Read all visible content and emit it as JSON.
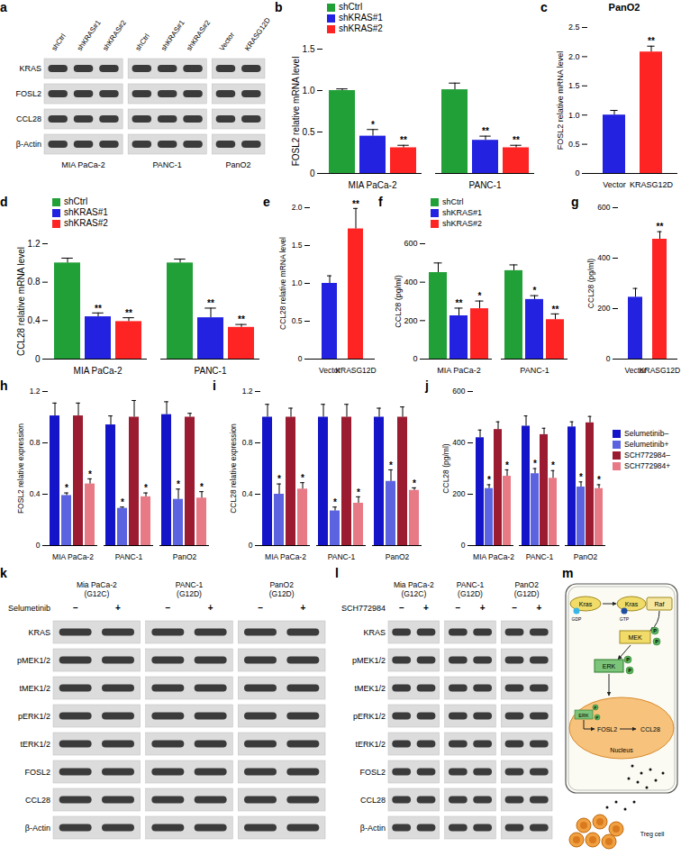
{
  "chart_data": [
    {
      "panel": "b",
      "type": "bar",
      "y_label": "FOSL2 relative mRNA level",
      "categories": [
        "MIA PaCa-2",
        "PANC-1"
      ],
      "series": [
        {
          "name": "shCtrl",
          "color": "#21a038",
          "values": [
            1.0,
            1.01
          ],
          "errors": [
            0.02,
            0.08
          ],
          "significance": [
            null,
            null
          ]
        },
        {
          "name": "shKRAS#1",
          "color": "#2222e0",
          "values": [
            0.45,
            0.4
          ],
          "errors": [
            0.08,
            0.05
          ],
          "significance": [
            "*",
            "**"
          ]
        },
        {
          "name": "shKRAS#2",
          "color": "#ff2424",
          "values": [
            0.31,
            0.31
          ],
          "errors": [
            0.03,
            0.03
          ],
          "significance": [
            "**",
            "**"
          ]
        }
      ],
      "ylim": [
        0,
        1.5
      ],
      "yticks": [
        0,
        0.5,
        {
          "value": 1,
          "label": "1.0"
        },
        1.5
      ],
      "legend": "top"
    },
    {
      "panel": "c",
      "type": "bar",
      "title": "PanO2",
      "y_label": "FOSL2 relative mRNA level",
      "categories": [
        "Vector",
        "KRASG12D"
      ],
      "values": [
        1.0,
        2.08
      ],
      "errors": [
        0.08,
        0.1
      ],
      "significance": [
        null,
        "**"
      ],
      "colors": [
        "#2222e0",
        "#ff2424"
      ],
      "ylim": [
        0,
        2.5
      ],
      "yticks": [
        0,
        0.5,
        {
          "value": 1,
          "label": "1.0"
        },
        1.5,
        {
          "value": 2,
          "label": "2.0"
        },
        2.5
      ]
    },
    {
      "panel": "d",
      "type": "bar",
      "y_label": "CCL28 relative mRNA level",
      "categories": [
        "MIA PaCa-2",
        "PANC-1"
      ],
      "series": [
        {
          "name": "shCtrl",
          "color": "#21a038",
          "values": [
            1.0,
            1.0
          ],
          "errors": [
            0.05,
            0.04
          ],
          "significance": [
            null,
            null
          ]
        },
        {
          "name": "shKRAS#1",
          "color": "#2222e0",
          "values": [
            0.44,
            0.43
          ],
          "errors": [
            0.04,
            0.1
          ],
          "significance": [
            "**",
            "**"
          ]
        },
        {
          "name": "shKRAS#2",
          "color": "#ff2424",
          "values": [
            0.39,
            0.33
          ],
          "errors": [
            0.04,
            0.03
          ],
          "significance": [
            "**",
            "**"
          ]
        }
      ],
      "ylim": [
        0,
        1.2
      ],
      "yticks": [
        0,
        0.4,
        0.8,
        1.2
      ],
      "legend": "top"
    },
    {
      "panel": "e",
      "type": "bar",
      "y_label": "CCL28 relative mRNA level",
      "categories": [
        "Vector",
        "KRASG12D"
      ],
      "values": [
        1.0,
        1.72
      ],
      "errors": [
        0.1,
        0.27
      ],
      "significance": [
        null,
        "**"
      ],
      "colors": [
        "#2222e0",
        "#ff2424"
      ],
      "ylim": [
        0,
        2
      ],
      "yticks": [
        0,
        0.5,
        {
          "value": 1,
          "label": "1.0"
        },
        1.5,
        {
          "value": 2,
          "label": "2.0"
        }
      ]
    },
    {
      "panel": "f",
      "type": "bar",
      "y_label": "CCL28 (pg/ml)",
      "categories": [
        "MIA PaCa-2",
        "PANC-1"
      ],
      "series": [
        {
          "name": "shCtrl",
          "color": "#21a038",
          "values": [
            450,
            460
          ],
          "errors": [
            50,
            30
          ],
          "significance": [
            null,
            null
          ]
        },
        {
          "name": "shKRAS#1",
          "color": "#2222e0",
          "values": [
            225,
            310
          ],
          "errors": [
            40,
            20
          ],
          "significance": [
            "**",
            "*"
          ]
        },
        {
          "name": "shKRAS#2",
          "color": "#ff2424",
          "values": [
            262,
            205
          ],
          "errors": [
            40,
            30
          ],
          "significance": [
            "*",
            "**"
          ]
        }
      ],
      "ylim": [
        0,
        600
      ],
      "yticks": [
        0,
        200,
        400,
        600
      ],
      "legend": "top"
    },
    {
      "panel": "g",
      "type": "bar",
      "y_label": "CCL28 (pg/ml)",
      "categories": [
        "Vector",
        "KRASG12D"
      ],
      "values": [
        245,
        475
      ],
      "errors": [
        35,
        30
      ],
      "significance": [
        null,
        "**"
      ],
      "colors": [
        "#2222e0",
        "#ff2424"
      ],
      "ylim": [
        0,
        600
      ],
      "yticks": [
        0,
        200,
        400,
        600
      ]
    },
    {
      "panel": "h",
      "type": "bar",
      "y_label": "FOSL2 relative expression",
      "categories": [
        "MIA PaCa-2",
        "PANC-1",
        "PanO2"
      ],
      "series": [
        {
          "name": "Selumetinib–",
          "color": "#1414c8",
          "values": [
            1.01,
            0.94,
            1.02
          ],
          "errors": [
            0.1,
            0.07,
            0.1
          ],
          "significance": [
            null,
            null,
            null
          ]
        },
        {
          "name": "Selumetinib+",
          "color": "#5b63e0",
          "values": [
            0.39,
            0.29,
            0.36
          ],
          "errors": [
            0.02,
            0.01,
            0.08
          ],
          "significance": [
            "*",
            "*",
            "*"
          ]
        },
        {
          "name": "SCH772984–",
          "color": "#9b1b30",
          "values": [
            1.01,
            1.0,
            1.0
          ],
          "errors": [
            0.1,
            0.13,
            0.03
          ],
          "significance": [
            null,
            null,
            null
          ]
        },
        {
          "name": "SCH772984+",
          "color": "#e87a86",
          "values": [
            0.48,
            0.38,
            0.37
          ],
          "errors": [
            0.04,
            0.03,
            0.05
          ],
          "significance": [
            "*",
            "*",
            "*"
          ]
        }
      ],
      "ylim": [
        0,
        1.2
      ],
      "yticks": [
        0,
        0.4,
        0.8,
        1.2
      ],
      "legend": "none"
    },
    {
      "panel": "i",
      "type": "bar",
      "y_label": "CCL28 relative expression",
      "categories": [
        "MIA PaCa-2",
        "PANC-1",
        "PanO2"
      ],
      "series": [
        {
          "name": "Selumetinib–",
          "color": "#1414c8",
          "values": [
            1.0,
            1.0,
            1.0
          ],
          "errors": [
            0.1,
            0.1,
            0.07
          ],
          "significance": [
            null,
            null,
            null
          ]
        },
        {
          "name": "Selumetinib+",
          "color": "#5b63e0",
          "values": [
            0.4,
            0.27,
            0.5
          ],
          "errors": [
            0.08,
            0.03,
            0.09
          ],
          "significance": [
            "*",
            "*",
            "*"
          ]
        },
        {
          "name": "SCH772984–",
          "color": "#9b1b30",
          "values": [
            1.0,
            1.0,
            1.0
          ],
          "errors": [
            0.07,
            0.1,
            0.08
          ],
          "significance": [
            null,
            null,
            null
          ]
        },
        {
          "name": "SCH772984+",
          "color": "#e87a86",
          "values": [
            0.44,
            0.33,
            0.43
          ],
          "errors": [
            0.05,
            0.05,
            0.02
          ],
          "significance": [
            "*",
            "*",
            "*"
          ]
        }
      ],
      "ylim": [
        0,
        1.2
      ],
      "yticks": [
        0,
        0.4,
        0.8,
        1.2
      ],
      "legend": "none"
    },
    {
      "panel": "j",
      "type": "bar",
      "y_label": "CCL28 (pg/ml)",
      "categories": [
        "MIA PaCa-2",
        "PANC-1",
        "PanO2"
      ],
      "series": [
        {
          "name": "Selumetinib–",
          "color": "#1414c8",
          "values": [
            420,
            465,
            462
          ],
          "errors": [
            30,
            40,
            20
          ],
          "significance": [
            null,
            null,
            null
          ]
        },
        {
          "name": "Selumetinib+",
          "color": "#5b63e0",
          "values": [
            222,
            280,
            228
          ],
          "errors": [
            15,
            20,
            20
          ],
          "significance": [
            "*",
            "*",
            "*"
          ]
        },
        {
          "name": "SCH772984–",
          "color": "#9b1b30",
          "values": [
            452,
            432,
            478
          ],
          "errors": [
            30,
            25,
            25
          ],
          "significance": [
            null,
            null,
            null
          ]
        },
        {
          "name": "SCH772984+",
          "color": "#e87a86",
          "values": [
            270,
            262,
            222
          ],
          "errors": [
            25,
            30,
            15
          ],
          "significance": [
            "*",
            "*",
            "*"
          ]
        }
      ],
      "ylim": [
        0,
        600
      ],
      "yticks": [
        0,
        200,
        400,
        600
      ],
      "legend": "right"
    }
  ],
  "blots": [
    {
      "panel": "a",
      "rows": [
        "KRAS",
        "FOSL2",
        "CCL28",
        "β-Actin"
      ],
      "groups": [
        {
          "label": "MIA PaCa-2",
          "lanes": [
            "shCtrl",
            "shKRAS#1",
            "shKRAS#2"
          ]
        },
        {
          "label": "PANC-1",
          "lanes": [
            "shCtrl",
            "shKRAS#1",
            "shKRAS#2"
          ]
        },
        {
          "label": "PanO2",
          "lanes": [
            "Vector",
            "KRASG12D"
          ]
        }
      ]
    },
    {
      "panel": "k",
      "treatment": "Selumetinib",
      "rows": [
        "KRAS",
        "pMEK1/2",
        "tMEK1/2",
        "pERK1/2",
        "tERK1/2",
        "FOSL2",
        "CCL28",
        "β-Actin"
      ],
      "groups": [
        {
          "label": [
            "Mia PaCa-2",
            "(G12C)"
          ],
          "lanes": [
            "–",
            "+"
          ]
        },
        {
          "label": [
            "PANC-1",
            "(G12D)"
          ],
          "lanes": [
            "–",
            "+"
          ]
        },
        {
          "label": [
            "PanO2",
            "(G12D)"
          ],
          "lanes": [
            "–",
            "+"
          ]
        }
      ]
    },
    {
      "panel": "l",
      "treatment": "SCH772984",
      "rows": [
        "KRAS",
        "pMEK1/2",
        "tMEK1/2",
        "pERK1/2",
        "tERK1/2",
        "FOSL2",
        "CCL28",
        "β-Actin"
      ],
      "groups": [
        {
          "label": [
            "Mia PaCa-2",
            "(G12C)"
          ],
          "lanes": [
            "–",
            "+"
          ]
        },
        {
          "label": [
            "PANC-1",
            "(G12D)"
          ],
          "lanes": [
            "–",
            "+"
          ]
        },
        {
          "label": [
            "PanO2",
            "(G12D)"
          ],
          "lanes": [
            "–",
            "+"
          ]
        }
      ]
    }
  ],
  "diagram": {
    "panel": "m",
    "kras": "Kras",
    "gdp": "GDP",
    "gtp": "GTP",
    "raf": "Raf",
    "mek": "MEK",
    "erk": "ERK",
    "phospho": "P",
    "nucleus": "Nucleus",
    "fosl2": "FOSL2",
    "ccl28": "CCL28",
    "treg": "Treg cell"
  }
}
